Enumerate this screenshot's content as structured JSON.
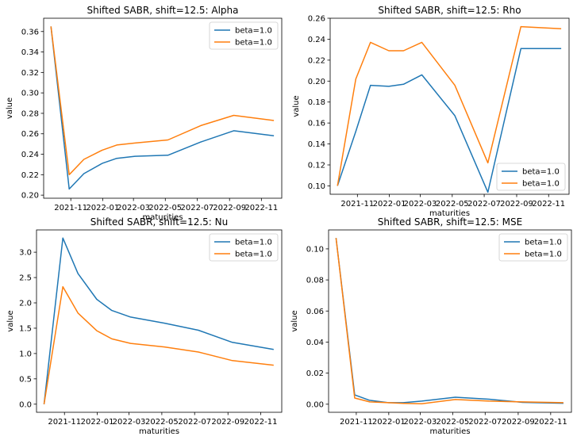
{
  "chart_data": [
    {
      "type": "line",
      "title": "Shifted SABR, shift=12.5: Alpha",
      "xlabel": "maturities",
      "ylabel": "value",
      "x": [
        "2021-09-24",
        "2021-10-29",
        "2021-11-26",
        "2021-12-31",
        "2022-01-28",
        "2022-03-04",
        "2022-05-06",
        "2022-07-08",
        "2022-09-09",
        "2022-11-25"
      ],
      "xlim": [
        "2021-09-10",
        "2022-12-10"
      ],
      "x_ticks": [
        "2021-11",
        "2022-01",
        "2022-03",
        "2022-05",
        "2022-07",
        "2022-09",
        "2022-11"
      ],
      "ylim": [
        0.197,
        0.373
      ],
      "y_ticks": [
        0.2,
        0.22,
        0.24,
        0.26,
        0.28,
        0.3,
        0.32,
        0.34,
        0.36
      ],
      "y_tick_labels": [
        "0.20",
        "0.22",
        "0.24",
        "0.26",
        "0.28",
        "0.30",
        "0.32",
        "0.34",
        "0.36"
      ],
      "legend_position": "upper right",
      "series": [
        {
          "name": "beta=1.0",
          "color": "#1f77b4",
          "values": [
            0.365,
            0.206,
            0.221,
            0.231,
            0.236,
            0.238,
            0.239,
            0.252,
            0.263,
            0.258
          ]
        },
        {
          "name": "beta=1.0",
          "color": "#ff7f0e",
          "values": [
            0.365,
            0.22,
            0.235,
            0.244,
            0.249,
            0.251,
            0.254,
            0.268,
            0.278,
            0.273
          ]
        }
      ]
    },
    {
      "type": "line",
      "title": "Shifted SABR, shift=12.5: Rho",
      "xlabel": "maturities",
      "ylabel": "value",
      "x": [
        "2021-09-24",
        "2021-10-29",
        "2021-11-26",
        "2021-12-31",
        "2022-01-28",
        "2022-03-04",
        "2022-05-06",
        "2022-07-08",
        "2022-09-09",
        "2022-11-25"
      ],
      "xlim": [
        "2021-09-10",
        "2022-12-10"
      ],
      "x_ticks": [
        "2021-11",
        "2022-01",
        "2022-03",
        "2022-05",
        "2022-07",
        "2022-09",
        "2022-11"
      ],
      "ylim": [
        0.092,
        0.26
      ],
      "y_ticks": [
        0.1,
        0.12,
        0.14,
        0.16,
        0.18,
        0.2,
        0.22,
        0.24,
        0.26
      ],
      "y_tick_labels": [
        "0.10",
        "0.12",
        "0.14",
        "0.16",
        "0.18",
        "0.20",
        "0.22",
        "0.24",
        "0.26"
      ],
      "legend_position": "lower right",
      "series": [
        {
          "name": "beta=1.0",
          "color": "#1f77b4",
          "values": [
            0.1,
            0.152,
            0.196,
            0.195,
            0.197,
            0.206,
            0.167,
            0.094,
            0.231,
            0.231
          ]
        },
        {
          "name": "beta=1.0",
          "color": "#ff7f0e",
          "values": [
            0.1,
            0.202,
            0.237,
            0.229,
            0.229,
            0.237,
            0.196,
            0.122,
            0.252,
            0.25
          ]
        }
      ]
    },
    {
      "type": "line",
      "title": "Shifted SABR, shift=12.5: Nu",
      "xlabel": "maturities",
      "ylabel": "value",
      "x": [
        "2021-09-24",
        "2021-10-29",
        "2021-11-26",
        "2021-12-31",
        "2022-01-28",
        "2022-03-04",
        "2022-05-06",
        "2022-07-08",
        "2022-09-09",
        "2022-11-25"
      ],
      "xlim": [
        "2021-09-10",
        "2022-12-10"
      ],
      "x_ticks": [
        "2021-11",
        "2022-01",
        "2022-03",
        "2022-05",
        "2022-07",
        "2022-09",
        "2022-11"
      ],
      "ylim": [
        -0.16,
        3.44
      ],
      "y_ticks": [
        0.0,
        0.5,
        1.0,
        1.5,
        2.0,
        2.5,
        3.0
      ],
      "y_tick_labels": [
        "0.0",
        "0.5",
        "1.0",
        "1.5",
        "2.0",
        "2.5",
        "3.0"
      ],
      "legend_position": "upper right",
      "series": [
        {
          "name": "beta=1.0",
          "color": "#1f77b4",
          "values": [
            0.0,
            3.28,
            2.58,
            2.07,
            1.85,
            1.72,
            1.6,
            1.46,
            1.22,
            1.08
          ]
        },
        {
          "name": "beta=1.0",
          "color": "#ff7f0e",
          "values": [
            0.0,
            2.32,
            1.8,
            1.45,
            1.29,
            1.2,
            1.13,
            1.03,
            0.86,
            0.77
          ]
        }
      ]
    },
    {
      "type": "line",
      "title": "Shifted SABR, shift=12.5: MSE",
      "xlabel": "maturities",
      "ylabel": "value",
      "x": [
        "2021-09-24",
        "2021-10-29",
        "2021-11-26",
        "2021-12-31",
        "2022-01-28",
        "2022-03-04",
        "2022-05-06",
        "2022-07-08",
        "2022-09-09",
        "2022-11-25"
      ],
      "xlim": [
        "2021-09-10",
        "2022-12-10"
      ],
      "x_ticks": [
        "2021-11",
        "2022-01",
        "2022-03",
        "2022-05",
        "2022-07",
        "2022-09",
        "2022-11"
      ],
      "ylim": [
        -0.0052,
        0.1122
      ],
      "y_ticks": [
        0.0,
        0.02,
        0.04,
        0.06,
        0.08,
        0.1
      ],
      "y_tick_labels": [
        "0.00",
        "0.02",
        "0.04",
        "0.06",
        "0.08",
        "0.10"
      ],
      "legend_position": "upper right",
      "series": [
        {
          "name": "beta=1.0",
          "color": "#1f77b4",
          "values": [
            0.107,
            0.006,
            0.0025,
            0.001,
            0.001,
            0.002,
            0.0045,
            0.0032,
            0.0012,
            0.0006
          ]
        },
        {
          "name": "beta=1.0",
          "color": "#ff7f0e",
          "values": [
            0.107,
            0.004,
            0.0015,
            0.001,
            0.0005,
            0.0003,
            0.003,
            0.002,
            0.0015,
            0.001
          ]
        }
      ]
    }
  ]
}
